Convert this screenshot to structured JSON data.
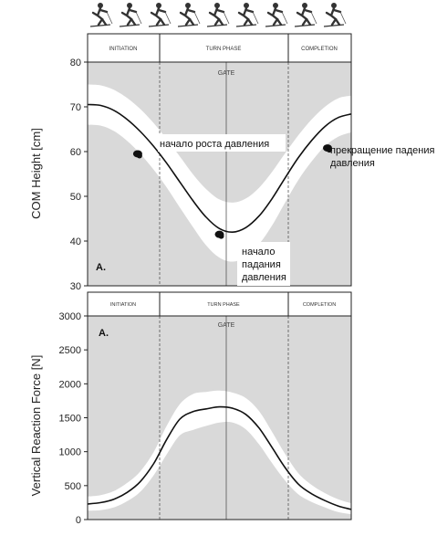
{
  "skier_strip": {
    "icon": "skier-silhouette-icon",
    "count": 9
  },
  "phases": [
    "INITIATION",
    "TURN PHASE",
    "COMPLETION"
  ],
  "gate_label": "GATE",
  "colors": {
    "band": "#ffffff",
    "background": "#d9d9d9",
    "mean_line": "#111111",
    "axis": "#222222",
    "divider": "#555555",
    "marker": "#111111"
  },
  "chart_data": [
    {
      "type": "line",
      "panel_label": "A.",
      "ylabel": "COM Height [cm]",
      "xlim": [
        0,
        100
      ],
      "ylim": [
        30,
        80
      ],
      "yticks": [
        30,
        40,
        50,
        60,
        70,
        80
      ],
      "phase_boundaries": [
        25,
        75
      ],
      "gate_x": 50,
      "series": [
        {
          "values": {
            "x": [
              0,
              5,
              10,
              15,
              20,
              25,
              30,
              35,
              40,
              45,
              50,
              55,
              60,
              65,
              70,
              75,
              80,
              85,
              90,
              95,
              100
            ],
            "mean": [
              70.5,
              70.3,
              69.2,
              67.2,
              64.5,
              61.2,
              57.4,
              53.2,
              49.0,
              45.3,
              42.8,
              42.0,
              43.0,
              45.6,
              49.5,
              54.2,
              58.7,
              62.5,
              65.6,
              67.6,
              68.4
            ],
            "upper": [
              75.0,
              74.8,
              73.8,
              72.0,
              69.5,
              66.4,
              62.8,
              58.9,
              54.9,
              51.6,
              49.3,
              48.6,
              49.5,
              51.9,
              55.5,
              59.7,
              63.7,
              67.2,
              70.0,
              71.9,
              72.5
            ],
            "lower": [
              66.0,
              65.8,
              64.6,
              62.4,
              59.5,
              56.0,
              52.0,
              47.5,
              43.1,
              39.0,
              36.3,
              35.4,
              36.5,
              39.3,
              43.5,
              48.7,
              53.7,
              57.8,
              61.2,
              63.3,
              64.3
            ]
          }
        }
      ],
      "annotations": [
        {
          "text": "начало роста давления",
          "x": 19,
          "y": 59.5
        },
        {
          "text": "начало\nпадания\nдавления",
          "x": 50,
          "y": 41.5
        },
        {
          "text": "прекращение падения\nдавления",
          "x": 91,
          "y": 60.8
        }
      ]
    },
    {
      "type": "line",
      "panel_label": "A.",
      "ylabel": "Vertical Reaction Force  [N]",
      "xlim": [
        0,
        100
      ],
      "ylim": [
        0,
        3000
      ],
      "yticks": [
        0,
        500,
        1000,
        1500,
        2000,
        2500,
        3000
      ],
      "phase_boundaries": [
        25,
        75
      ],
      "gate_x": 50,
      "series": [
        {
          "values": {
            "x": [
              0,
              5,
              10,
              15,
              20,
              25,
              30,
              35,
              40,
              45,
              50,
              55,
              60,
              65,
              70,
              75,
              80,
              85,
              90,
              95,
              100
            ],
            "mean": [
              230,
              250,
              300,
              400,
              560,
              820,
              1180,
              1480,
              1590,
              1630,
              1660,
              1640,
              1550,
              1350,
              1060,
              760,
              520,
              380,
              280,
              200,
              150
            ],
            "upper": [
              340,
              360,
              420,
              540,
              710,
              990,
              1380,
              1700,
              1850,
              1880,
              1900,
              1870,
              1790,
              1600,
              1290,
              960,
              680,
              510,
              390,
              300,
              240
            ],
            "lower": [
              130,
              140,
              180,
              270,
              410,
              650,
              960,
              1240,
              1320,
              1380,
              1430,
              1430,
              1330,
              1110,
              830,
              570,
              370,
              260,
              180,
              110,
              80
            ]
          }
        }
      ]
    }
  ]
}
